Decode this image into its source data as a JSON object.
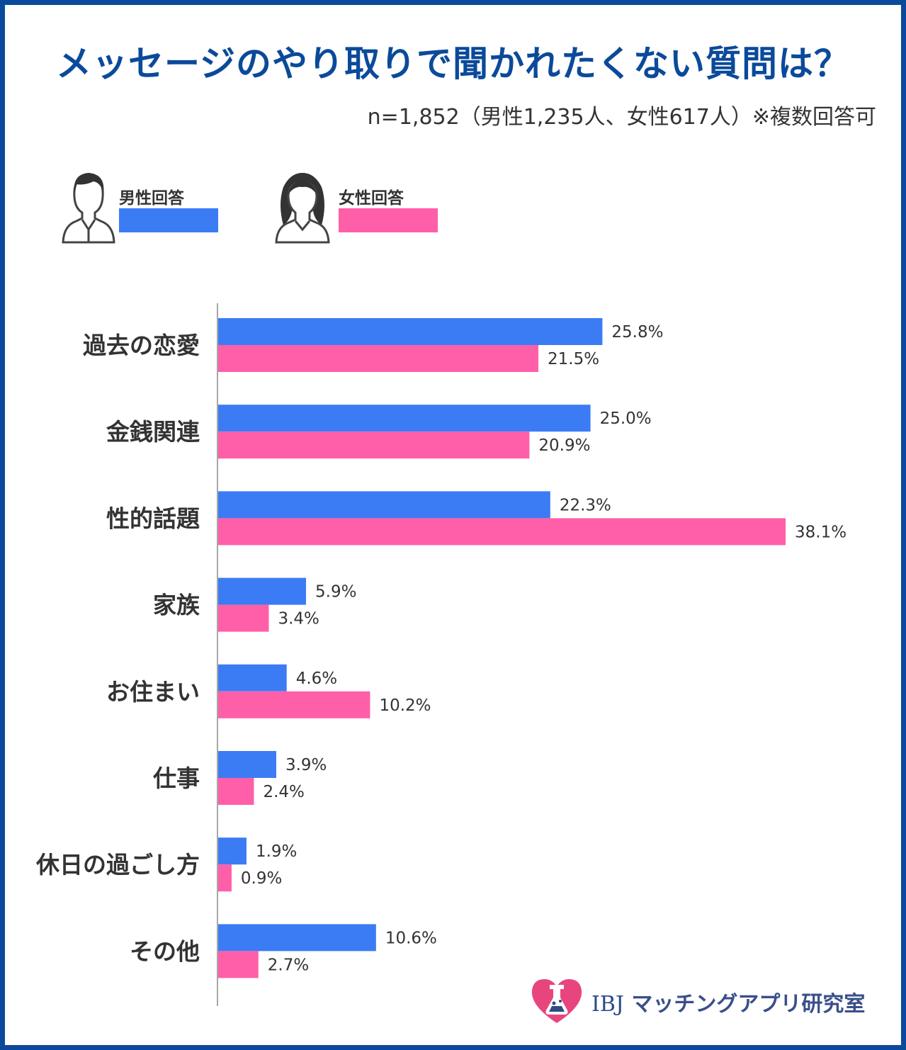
{
  "title": "メッセージのやり取りで聞かれたくない質問は？",
  "subtitle": "n=1,852（男性1,235人、女性617人）※複数回答可",
  "legend": {
    "male": {
      "label": "男性回答",
      "color": "#3b7cf5",
      "icon": "man-icon"
    },
    "female": {
      "label": "女性回答",
      "color": "#ff5fa8",
      "icon": "woman-icon"
    }
  },
  "logo": {
    "brand": "IBJ",
    "name": "マッチングアプリ研究室",
    "icon": "heart-flask-icon"
  },
  "chart_data": {
    "type": "bar",
    "orientation": "horizontal",
    "categories": [
      "過去の恋愛",
      "金銭関連",
      "性的話題",
      "家族",
      "お住まい",
      "仕事",
      "休日の過ごし方",
      "その他"
    ],
    "series": [
      {
        "name": "男性回答",
        "color": "#3b7cf5",
        "values": [
          25.8,
          25.0,
          22.3,
          5.9,
          4.6,
          3.9,
          1.9,
          10.6
        ],
        "labels": [
          "25.8%",
          "25.0%",
          "22.3%",
          "5.9%",
          "4.6%",
          "3.9%",
          "1.9%",
          "10.6%"
        ]
      },
      {
        "name": "女性回答",
        "color": "#ff5fa8",
        "values": [
          21.5,
          20.9,
          38.1,
          3.4,
          10.2,
          2.4,
          0.9,
          2.7
        ],
        "labels": [
          "21.5%",
          "20.9%",
          "38.1%",
          "3.4%",
          "10.2%",
          "2.4%",
          "0.9%",
          "2.7%"
        ]
      }
    ],
    "grid": false,
    "legend_position": "top-left"
  }
}
